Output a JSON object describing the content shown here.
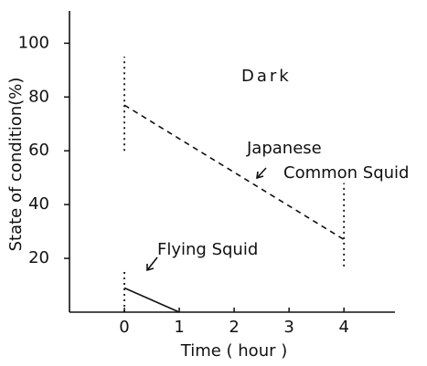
{
  "chart_data": {
    "type": "line",
    "ylabel": "State of condition(%)",
    "xlabel": "Time ( hour )",
    "xlim": [
      -1,
      4.93
    ],
    "xticks": [
      0,
      1,
      2,
      3,
      4
    ],
    "ylim": [
      0,
      112
    ],
    "yticks": [
      20,
      40,
      60,
      80,
      100
    ],
    "annotations": [
      "Dark",
      "Japanese",
      "Common Squid",
      "Flying Squid"
    ],
    "series": [
      {
        "color": "#111",
        "style": "dashed",
        "x": [
          0,
          4
        ],
        "values": [
          77,
          27
        ],
        "range_low": [
          60,
          17
        ],
        "range_high": [
          95,
          48
        ]
      },
      {
        "color": "#111",
        "style": "solid",
        "x": [
          0,
          1
        ],
        "values": [
          9,
          0
        ],
        "range_low": [
          0,
          null
        ],
        "range_high": [
          15,
          null
        ]
      }
    ]
  }
}
